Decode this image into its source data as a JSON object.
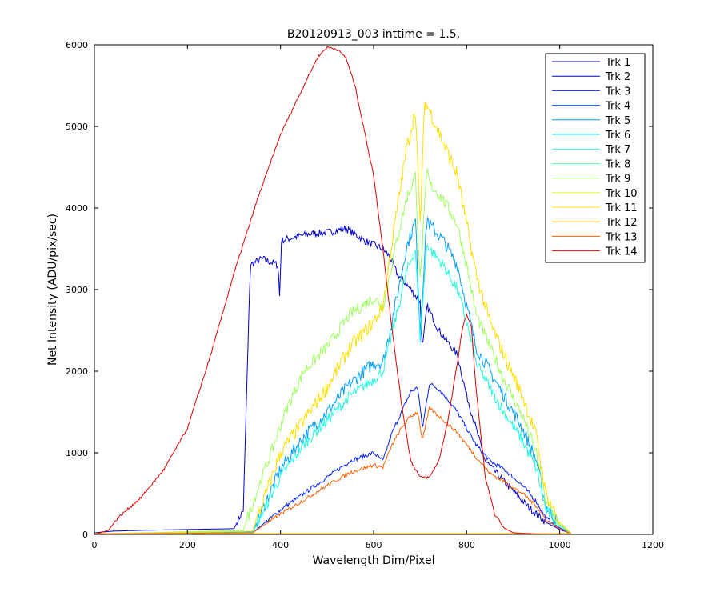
{
  "chart_data": {
    "type": "line",
    "title": "B20120913_003 inttime = 1.5,",
    "xlabel": "Wavelength Dim/Pixel",
    "ylabel": "Net Intensity (ADU/pix/sec)",
    "xlim": [
      0,
      1200
    ],
    "ylim": [
      0,
      6000
    ],
    "xticks": [
      0,
      200,
      400,
      600,
      800,
      1000,
      1200
    ],
    "yticks": [
      0,
      1000,
      2000,
      3000,
      4000,
      5000,
      6000
    ],
    "grid": false,
    "legend_position": "top-right",
    "series": [
      {
        "name": "Trk 1",
        "color": "#00008f",
        "noise": 0,
        "x": [
          0,
          1025
        ],
        "y": [
          3,
          3
        ]
      },
      {
        "name": "Trk 2",
        "color": "#0000cf",
        "noise": 90,
        "x": [
          0,
          40,
          100,
          200,
          300,
          320,
          335,
          360,
          395,
          398,
          402,
          420,
          460,
          500,
          540,
          560,
          580,
          600,
          620,
          635,
          650,
          680,
          700,
          705,
          715,
          740,
          780,
          800,
          840,
          880,
          930,
          970,
          1000,
          1025
        ],
        "y": [
          20,
          40,
          50,
          60,
          70,
          300,
          3300,
          3380,
          3300,
          2920,
          3600,
          3630,
          3680,
          3700,
          3750,
          3680,
          3600,
          3550,
          3500,
          3400,
          3200,
          3000,
          2850,
          2280,
          2800,
          2500,
          2200,
          1700,
          900,
          650,
          350,
          150,
          60,
          10
        ]
      },
      {
        "name": "Trk 3",
        "color": "#0020ff",
        "noise": 50,
        "x": [
          0,
          340,
          400,
          450,
          500,
          550,
          600,
          620,
          640,
          660,
          680,
          695,
          705,
          720,
          740,
          760,
          780,
          800,
          820,
          850,
          880,
          920,
          950,
          970,
          1000,
          1025
        ],
        "y": [
          5,
          20,
          300,
          500,
          700,
          900,
          1000,
          900,
          1250,
          1500,
          1750,
          1800,
          1300,
          1850,
          1780,
          1650,
          1500,
          1300,
          1100,
          900,
          800,
          600,
          400,
          200,
          80,
          10
        ]
      },
      {
        "name": "Trk 4",
        "color": "#005fff",
        "noise": 0,
        "x": [
          0,
          1025
        ],
        "y": [
          6,
          6
        ]
      },
      {
        "name": "Trk 5",
        "color": "#00a0ff",
        "noise": 160,
        "x": [
          0,
          340,
          400,
          450,
          500,
          550,
          600,
          620,
          650,
          670,
          690,
          700,
          715,
          720,
          750,
          780,
          800,
          820,
          850,
          880,
          920,
          950,
          970,
          1000,
          1025
        ],
        "y": [
          5,
          30,
          800,
          1200,
          1500,
          1850,
          2100,
          2100,
          2900,
          3500,
          3850,
          2500,
          3900,
          3800,
          3600,
          3300,
          2800,
          2300,
          2000,
          1700,
          1300,
          900,
          350,
          120,
          10
        ]
      },
      {
        "name": "Trk 6",
        "color": "#00dfff",
        "noise": 0,
        "x": [
          0,
          1025
        ],
        "y": [
          10,
          10
        ]
      },
      {
        "name": "Trk 7",
        "color": "#20ffdf",
        "noise": 140,
        "x": [
          0,
          340,
          400,
          450,
          500,
          550,
          600,
          620,
          650,
          670,
          690,
          700,
          715,
          720,
          750,
          780,
          800,
          820,
          850,
          880,
          920,
          950,
          970,
          1000,
          1025
        ],
        "y": [
          5,
          25,
          700,
          1100,
          1400,
          1700,
          1900,
          2000,
          2700,
          3200,
          3500,
          2400,
          3600,
          3500,
          3300,
          3000,
          2600,
          2100,
          1800,
          1500,
          1150,
          800,
          300,
          100,
          10
        ]
      },
      {
        "name": "Trk 8",
        "color": "#60ff9f",
        "noise": 0,
        "x": [
          0,
          1025
        ],
        "y": [
          8,
          8
        ]
      },
      {
        "name": "Trk 9",
        "color": "#9fff60",
        "noise": 150,
        "x": [
          0,
          320,
          360,
          380,
          410,
          450,
          500,
          550,
          600,
          620,
          650,
          670,
          690,
          700,
          715,
          720,
          750,
          780,
          800,
          820,
          850,
          880,
          920,
          950,
          970,
          1000,
          1025
        ],
        "y": [
          5,
          50,
          700,
          1000,
          1500,
          2000,
          2300,
          2700,
          2900,
          2800,
          3600,
          4100,
          4400,
          3100,
          4500,
          4300,
          4100,
          3800,
          3300,
          2700,
          2300,
          1900,
          1450,
          1000,
          400,
          120,
          10
        ]
      },
      {
        "name": "Trk 10",
        "color": "#dfff20",
        "noise": 0,
        "x": [
          0,
          1025
        ],
        "y": [
          12,
          12
        ]
      },
      {
        "name": "Trk 11",
        "color": "#ffdf00",
        "noise": 180,
        "x": [
          0,
          340,
          400,
          450,
          500,
          550,
          600,
          620,
          640,
          670,
          690,
          700,
          710,
          720,
          750,
          780,
          800,
          820,
          850,
          880,
          920,
          950,
          970,
          1000,
          1025
        ],
        "y": [
          5,
          40,
          1000,
          1400,
          1800,
          2300,
          2600,
          2800,
          3600,
          4700,
          5200,
          3800,
          5300,
          5200,
          4800,
          4400,
          3800,
          3200,
          2600,
          2200,
          1700,
          1200,
          500,
          150,
          10
        ]
      },
      {
        "name": "Trk 12",
        "color": "#ffa000",
        "noise": 0,
        "x": [
          0,
          1025
        ],
        "y": [
          9,
          9
        ]
      },
      {
        "name": "Trk 13",
        "color": "#ff6000",
        "noise": 45,
        "x": [
          0,
          340,
          400,
          450,
          500,
          550,
          600,
          620,
          640,
          660,
          680,
          695,
          705,
          720,
          740,
          760,
          780,
          800,
          820,
          850,
          880,
          920,
          950,
          970,
          1000,
          1025
        ],
        "y": [
          5,
          20,
          250,
          420,
          600,
          760,
          850,
          820,
          1100,
          1300,
          1450,
          1500,
          1150,
          1550,
          1450,
          1350,
          1250,
          1100,
          950,
          750,
          650,
          500,
          350,
          180,
          70,
          10
        ]
      },
      {
        "name": "Trk 14",
        "color": "#df0000",
        "noise": 30,
        "x": [
          0,
          30,
          50,
          60,
          100,
          150,
          200,
          250,
          300,
          350,
          400,
          450,
          480,
          500,
          520,
          540,
          560,
          600,
          620,
          640,
          660,
          680,
          700,
          720,
          740,
          760,
          780,
          790,
          800,
          810,
          820,
          840,
          860,
          880,
          900,
          950,
          1025
        ],
        "y": [
          0,
          50,
          200,
          250,
          450,
          800,
          1300,
          2200,
          3200,
          4100,
          4900,
          5500,
          5850,
          5970,
          5950,
          5850,
          5500,
          4400,
          3500,
          2500,
          1600,
          900,
          700,
          700,
          900,
          1400,
          2100,
          2500,
          2700,
          2550,
          1800,
          700,
          250,
          80,
          20,
          5,
          0
        ]
      }
    ]
  }
}
